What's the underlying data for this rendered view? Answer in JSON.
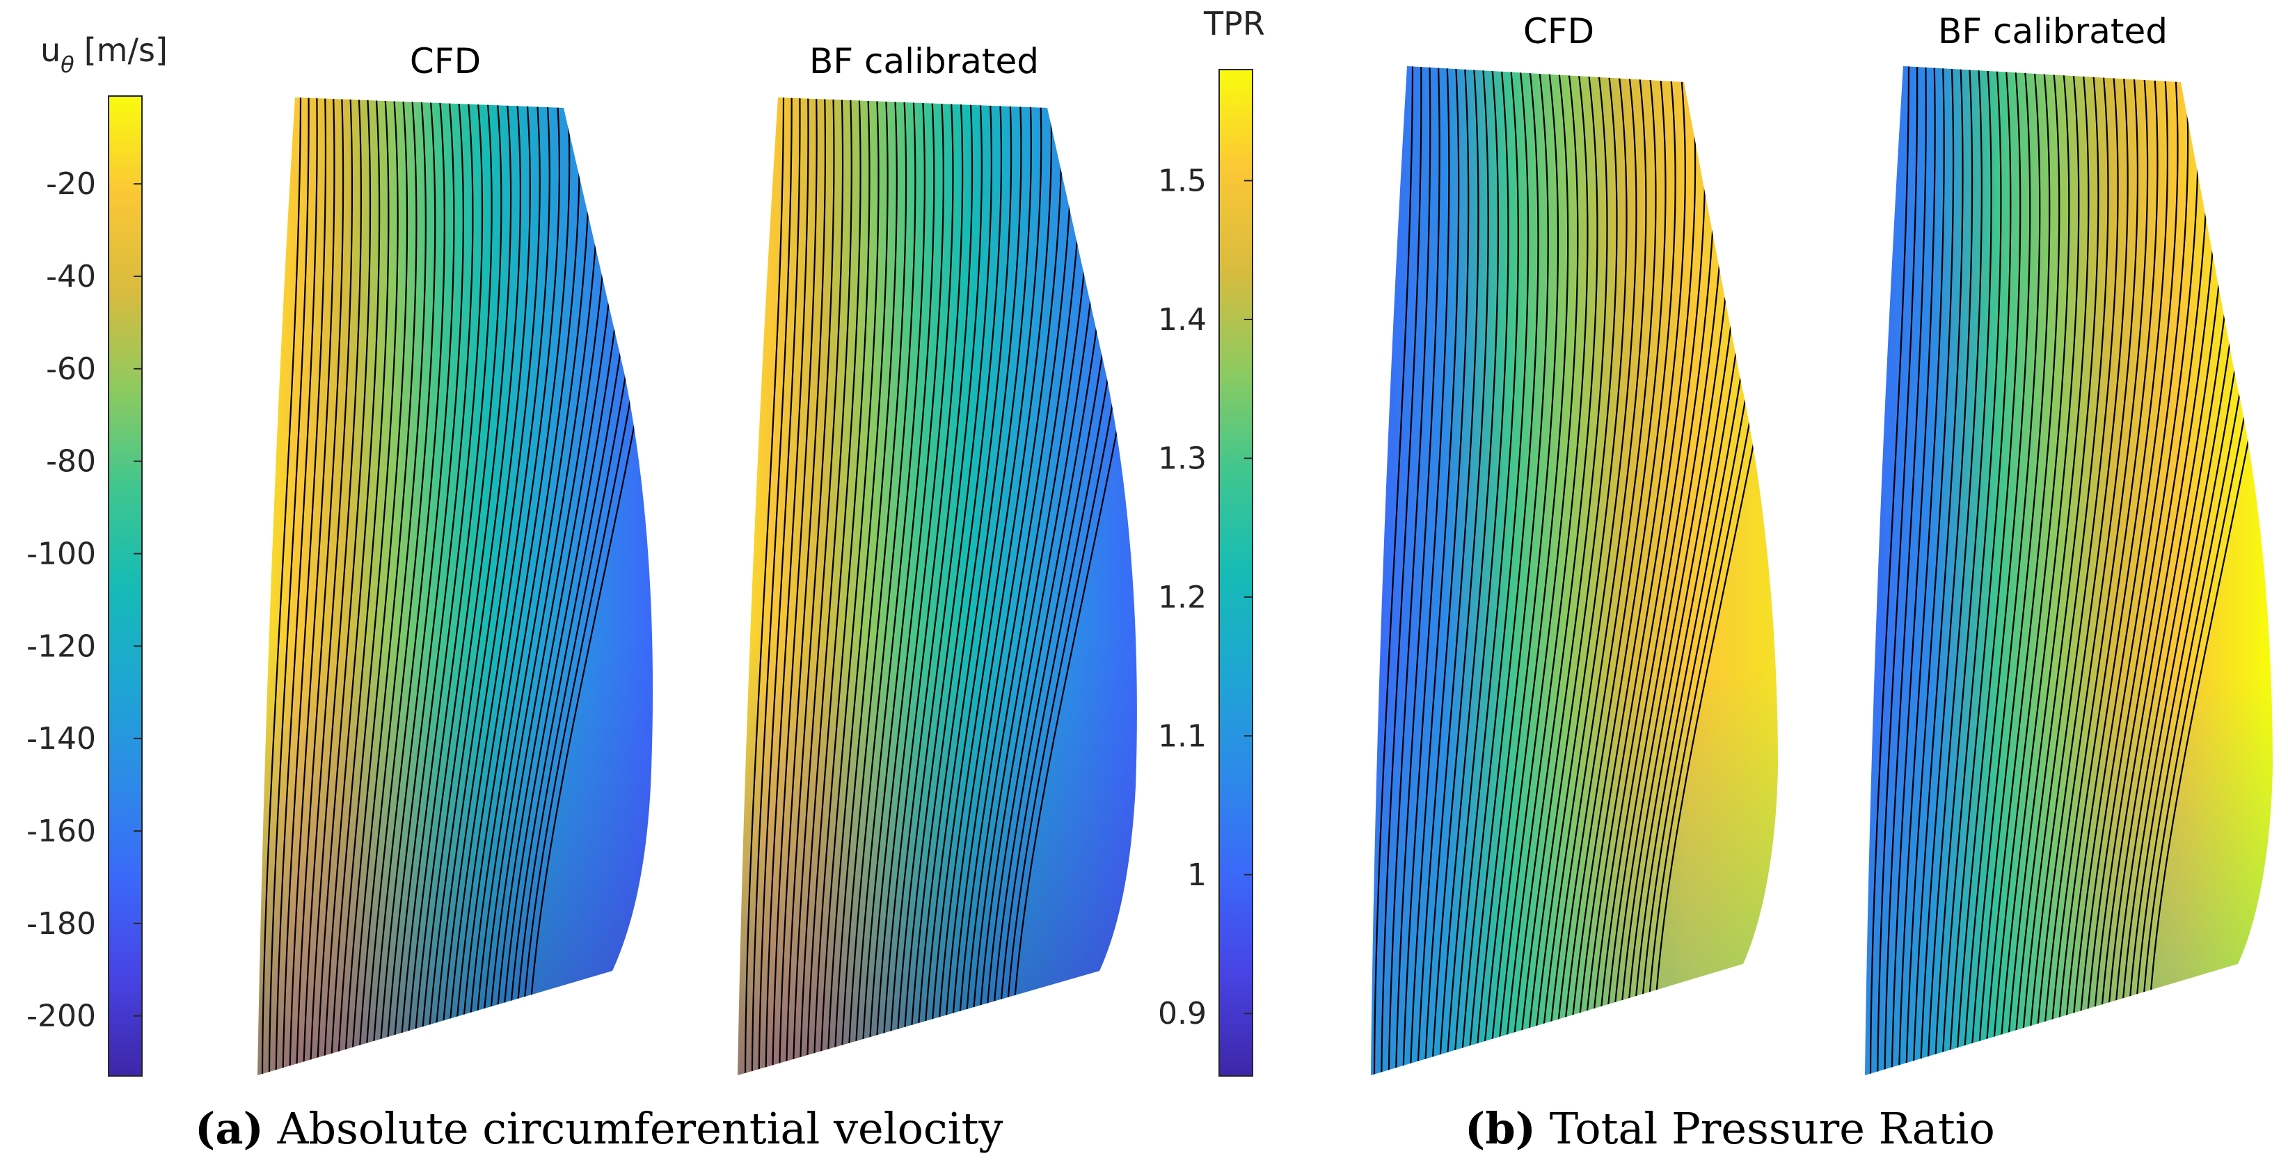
{
  "colors": {
    "contour_line": "#000000",
    "colormap": "parula"
  },
  "chart_data": [
    {
      "type": "heatmap",
      "subfigure": "(a)",
      "caption": {
        "label": "(a)",
        "text": "Absolute circumferential velocity"
      },
      "colorbar": {
        "label": "u",
        "label_subscript": "θ",
        "unit": "[m/s]",
        "range": [
          -213,
          -1
        ],
        "ticks": [
          "-20",
          "-40",
          "-60",
          "-80",
          "-100",
          "-120",
          "-140",
          "-160",
          "-180",
          "-200"
        ],
        "tick_values": [
          -20,
          -40,
          -60,
          -80,
          -100,
          -120,
          -140,
          -160,
          -180,
          -200
        ]
      },
      "panels": [
        {
          "title": "CFD",
          "contour_levels": 40,
          "field": "u_theta",
          "min": -213,
          "max": -1
        },
        {
          "title": "BF calibrated",
          "contour_levels": 40,
          "field": "u_theta",
          "min": -213,
          "max": -1
        }
      ]
    },
    {
      "type": "heatmap",
      "subfigure": "(b)",
      "caption": {
        "label": "(b)",
        "text": "Total Pressure Ratio"
      },
      "colorbar": {
        "label": "TPR",
        "range": [
          0.855,
          1.58
        ],
        "ticks": [
          "1.5",
          "1.4",
          "1.3",
          "1.2",
          "1.1",
          "1",
          "0.9"
        ],
        "tick_values": [
          1.5,
          1.4,
          1.3,
          1.2,
          1.1,
          1.0,
          0.9
        ]
      },
      "panels": [
        {
          "title": "CFD",
          "contour_levels": 40,
          "field": "TPR",
          "min": 0.855,
          "max": 1.58
        },
        {
          "title": "BF calibrated",
          "contour_levels": 40,
          "field": "TPR",
          "min": 0.855,
          "max": 1.58
        }
      ]
    }
  ]
}
